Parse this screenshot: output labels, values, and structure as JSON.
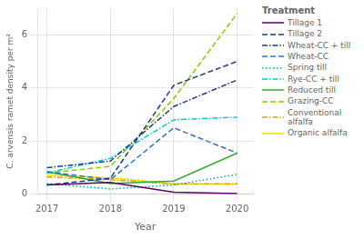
{
  "chart_data": {
    "type": "line",
    "x": [
      2017,
      2018,
      2019,
      2020
    ],
    "series": [
      {
        "name": "Tillage 1",
        "color": "#5C0060",
        "line_style": "solid",
        "values": [
          0.35,
          0.45,
          0.08,
          0.03
        ]
      },
      {
        "name": "Tillage 2",
        "color": "#1F3A8C",
        "line_style": "dashed",
        "values": [
          0.35,
          0.6,
          4.1,
          5.0
        ]
      },
      {
        "name": "Wheat-CC + till",
        "color": "#1F3A8C",
        "line_style": "dashdot",
        "values": [
          1.0,
          1.25,
          3.3,
          4.3
        ]
      },
      {
        "name": "Wheat-CC",
        "color": "#3A6FCC",
        "line_style": "dashed",
        "values": [
          0.85,
          0.55,
          2.5,
          1.55
        ]
      },
      {
        "name": "Spring till",
        "color": "#00AAAA",
        "line_style": "dotted",
        "values": [
          0.4,
          0.2,
          0.35,
          0.75
        ]
      },
      {
        "name": "Rye-CC + till",
        "color": "#00CCCC",
        "line_style": "dashdot",
        "values": [
          0.8,
          1.35,
          2.8,
          2.9
        ]
      },
      {
        "name": "Reduced till",
        "color": "#33AA33",
        "line_style": "solid",
        "values": [
          0.85,
          0.4,
          0.5,
          1.55
        ]
      },
      {
        "name": "Grazing-CC",
        "color": "#88CC00",
        "line_style": "dashed",
        "values": [
          0.8,
          1.05,
          3.6,
          6.8
        ]
      },
      {
        "name": "Conventional\nalfalfa",
        "color": "#CCAA00",
        "line_style": "dashdot",
        "values": [
          0.65,
          0.55,
          0.38,
          0.4
        ]
      },
      {
        "name": "Organic alfalfa",
        "color": "#FFD700",
        "line_style": "solid",
        "values": [
          0.72,
          0.62,
          0.4,
          0.38
        ]
      }
    ],
    "xlabel": "Year",
    "ylabel": "C. arvensis ramet density per m²",
    "legend_title": "Treatment",
    "legend": "right",
    "xlim": [
      2016.85,
      2020.25
    ],
    "xticks": [
      2017,
      2018,
      2019,
      2020
    ],
    "ylim": [
      0,
      7
    ],
    "yticks": [
      0,
      2,
      4,
      6
    ],
    "grid": true
  }
}
